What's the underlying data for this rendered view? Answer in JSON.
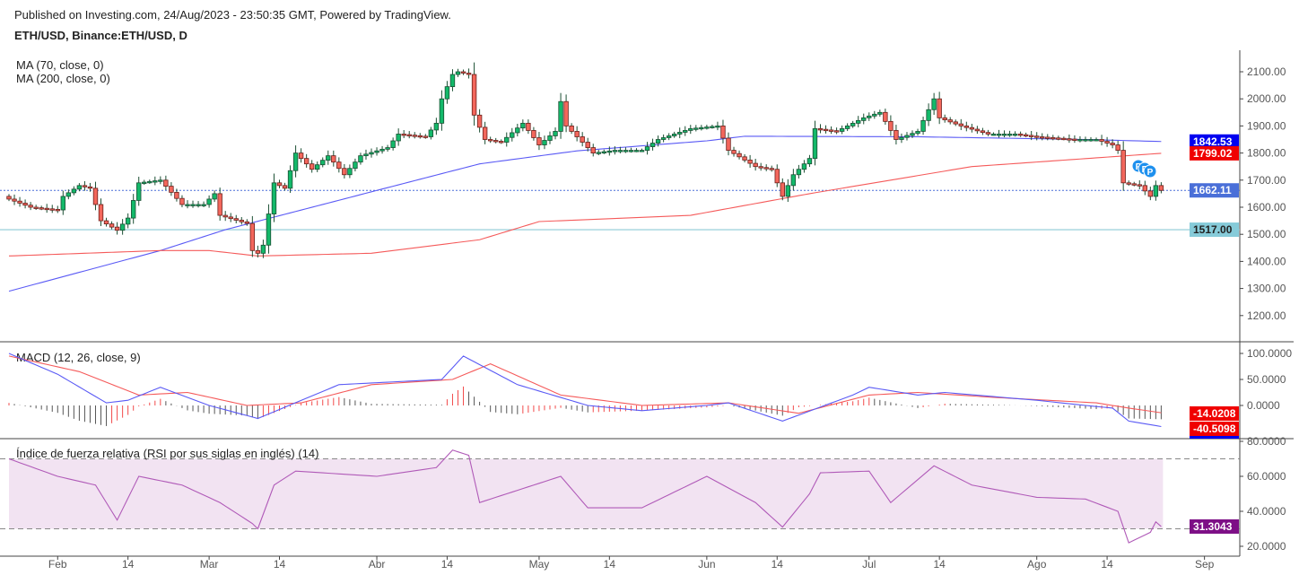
{
  "header": {
    "published": "Published on Investing.com, 24/Aug/2023 - 23:50:35 GMT, Powered by TradingView.",
    "symbol": "ETH/USD, Binance:ETH/USD, D"
  },
  "legends": {
    "ma70": "MA (70, close, 0)",
    "ma200": "MA (200, close, 0)",
    "macd": "MACD (12, 26, close, 9)",
    "rsi": "Índice de fuerza relativa (RSI por sus siglas en inglés) (14)"
  },
  "markers": [
    "P",
    "P",
    "P"
  ],
  "colors": {
    "up": "#13b96a",
    "down": "#f3675c",
    "wick": "#1b4f33",
    "ma70": "#5a5af5",
    "ma200": "#f55a5a",
    "macd": "#5a5af5",
    "signal": "#f55a5a",
    "rsi": "#b05ab8",
    "rsi_band": "#f2e3f2"
  },
  "chart_data": [
    {
      "type": "candlestick",
      "title": "ETH/USD, Binance:ETH/USD, D",
      "ylim": [
        1100,
        2150
      ],
      "y_ticks": [
        "2100.00",
        "2000.00",
        "1900.00",
        "1800.00",
        "1700.00",
        "1600.00",
        "1500.00",
        "1400.00",
        "1300.00",
        "1200.00"
      ],
      "x_ticks": [
        "Feb",
        "14",
        "Mar",
        "14",
        "Abr",
        "14",
        "May",
        "14",
        "Jun",
        "14",
        "Jul",
        "14",
        "Ago",
        "14",
        "Sep"
      ],
      "x_tick_dates": [
        "2023-02-01",
        "2023-02-14",
        "2023-03-01",
        "2023-03-14",
        "2023-04-01",
        "2023-04-14",
        "2023-05-01",
        "2023-05-14",
        "2023-06-01",
        "2023-06-14",
        "2023-07-01",
        "2023-07-14",
        "2023-08-01",
        "2023-08-14",
        "2023-09-01"
      ],
      "start_date": "2023-01-23",
      "close_anchors": [
        [
          "2023-01-23",
          1630
        ],
        [
          "2023-01-27",
          1600
        ],
        [
          "2023-02-01",
          1590
        ],
        [
          "2023-02-02",
          1640
        ],
        [
          "2023-02-05",
          1680
        ],
        [
          "2023-02-07",
          1670
        ],
        [
          "2023-02-09",
          1550
        ],
        [
          "2023-02-12",
          1515
        ],
        [
          "2023-02-14",
          1560
        ],
        [
          "2023-02-16",
          1690
        ],
        [
          "2023-02-18",
          1695
        ],
        [
          "2023-02-20",
          1700
        ],
        [
          "2023-02-24",
          1610
        ],
        [
          "2023-02-28",
          1610
        ],
        [
          "2023-03-02",
          1650
        ],
        [
          "2023-03-03",
          1570
        ],
        [
          "2023-03-08",
          1540
        ],
        [
          "2023-03-09",
          1440
        ],
        [
          "2023-03-10",
          1430
        ],
        [
          "2023-03-11",
          1460
        ],
        [
          "2023-03-13",
          1690
        ],
        [
          "2023-03-15",
          1670
        ],
        [
          "2023-03-17",
          1800
        ],
        [
          "2023-03-20",
          1740
        ],
        [
          "2023-03-23",
          1790
        ],
        [
          "2023-03-26",
          1720
        ],
        [
          "2023-03-29",
          1790
        ],
        [
          "2023-04-03",
          1820
        ],
        [
          "2023-04-05",
          1870
        ],
        [
          "2023-04-10",
          1860
        ],
        [
          "2023-04-12",
          1910
        ],
        [
          "2023-04-13",
          2000
        ],
        [
          "2023-04-15",
          2090
        ],
        [
          "2023-04-16",
          2100
        ],
        [
          "2023-04-18",
          2090
        ],
        [
          "2023-04-19",
          1940
        ],
        [
          "2023-04-21",
          1850
        ],
        [
          "2023-04-24",
          1840
        ],
        [
          "2023-04-28",
          1910
        ],
        [
          "2023-05-01",
          1830
        ],
        [
          "2023-05-04",
          1880
        ],
        [
          "2023-05-05",
          1990
        ],
        [
          "2023-05-06",
          1900
        ],
        [
          "2023-05-09",
          1840
        ],
        [
          "2023-05-11",
          1800
        ],
        [
          "2023-05-15",
          1810
        ],
        [
          "2023-05-20",
          1810
        ],
        [
          "2023-05-23",
          1850
        ],
        [
          "2023-05-29",
          1890
        ],
        [
          "2023-06-03",
          1900
        ],
        [
          "2023-06-05",
          1810
        ],
        [
          "2023-06-10",
          1750
        ],
        [
          "2023-06-13",
          1740
        ],
        [
          "2023-06-15",
          1640
        ],
        [
          "2023-06-17",
          1720
        ],
        [
          "2023-06-20",
          1780
        ],
        [
          "2023-06-21",
          1890
        ],
        [
          "2023-06-25",
          1880
        ],
        [
          "2023-06-30",
          1930
        ],
        [
          "2023-07-03",
          1950
        ],
        [
          "2023-07-06",
          1850
        ],
        [
          "2023-07-10",
          1880
        ],
        [
          "2023-07-13",
          2000
        ],
        [
          "2023-07-14",
          1930
        ],
        [
          "2023-07-18",
          1900
        ],
        [
          "2023-07-23",
          1870
        ],
        [
          "2023-07-28",
          1870
        ],
        [
          "2023-08-01",
          1860
        ],
        [
          "2023-08-08",
          1850
        ],
        [
          "2023-08-12",
          1850
        ],
        [
          "2023-08-15",
          1830
        ],
        [
          "2023-08-16",
          1810
        ],
        [
          "2023-08-17",
          1690
        ],
        [
          "2023-08-20",
          1680
        ],
        [
          "2023-08-22",
          1640
        ],
        [
          "2023-08-23",
          1680
        ],
        [
          "2023-08-24",
          1662.11
        ]
      ],
      "ma70_anchors": [
        [
          "2023-01-23",
          1290
        ],
        [
          "2023-02-20",
          1440
        ],
        [
          "2023-03-04",
          1517
        ],
        [
          "2023-04-01",
          1662
        ],
        [
          "2023-04-20",
          1760
        ],
        [
          "2023-05-08",
          1808
        ],
        [
          "2023-06-01",
          1845
        ],
        [
          "2023-06-08",
          1862
        ],
        [
          "2023-07-10",
          1860
        ],
        [
          "2023-08-10",
          1850
        ],
        [
          "2023-08-24",
          1842.53
        ]
      ],
      "ma200_anchors": [
        [
          "2023-01-23",
          1420
        ],
        [
          "2023-02-20",
          1440
        ],
        [
          "2023-03-01",
          1440
        ],
        [
          "2023-03-10",
          1420
        ],
        [
          "2023-03-31",
          1430
        ],
        [
          "2023-04-20",
          1480
        ],
        [
          "2023-05-01",
          1547
        ],
        [
          "2023-05-29",
          1570
        ],
        [
          "2023-06-20",
          1650
        ],
        [
          "2023-07-20",
          1750
        ],
        [
          "2023-08-24",
          1799.02
        ]
      ],
      "last_price": "1662.11",
      "ma70_last": "1842.53",
      "ma200_last": "1799.02",
      "hline": "1517.00",
      "hline_value": 1517
    },
    {
      "type": "line",
      "title": "MACD (12, 26, close, 9)",
      "ylim": [
        -60,
        110
      ],
      "y_ticks": [
        "100.0000",
        "50.0000",
        "0.0000"
      ],
      "macd_anchors": [
        [
          "2023-01-23",
          100
        ],
        [
          "2023-02-01",
          60
        ],
        [
          "2023-02-10",
          5
        ],
        [
          "2023-02-14",
          10
        ],
        [
          "2023-02-20",
          35
        ],
        [
          "2023-03-01",
          0
        ],
        [
          "2023-03-10",
          -25
        ],
        [
          "2023-03-25",
          40
        ],
        [
          "2023-04-13",
          50
        ],
        [
          "2023-04-17",
          95
        ],
        [
          "2023-04-27",
          40
        ],
        [
          "2023-05-10",
          0
        ],
        [
          "2023-05-20",
          -10
        ],
        [
          "2023-06-01",
          0
        ],
        [
          "2023-06-05",
          5
        ],
        [
          "2023-06-15",
          -30
        ],
        [
          "2023-06-28",
          20
        ],
        [
          "2023-07-01",
          35
        ],
        [
          "2023-07-10",
          20
        ],
        [
          "2023-07-15",
          25
        ],
        [
          "2023-08-01",
          10
        ],
        [
          "2023-08-10",
          0
        ],
        [
          "2023-08-15",
          -5
        ],
        [
          "2023-08-18",
          -30
        ],
        [
          "2023-08-24",
          -40.5
        ]
      ],
      "signal_anchors": [
        [
          "2023-01-23",
          95
        ],
        [
          "2023-02-05",
          65
        ],
        [
          "2023-02-16",
          20
        ],
        [
          "2023-02-25",
          25
        ],
        [
          "2023-03-08",
          0
        ],
        [
          "2023-03-18",
          5
        ],
        [
          "2023-03-31",
          40
        ],
        [
          "2023-04-15",
          50
        ],
        [
          "2023-04-22",
          80
        ],
        [
          "2023-05-05",
          20
        ],
        [
          "2023-05-20",
          0
        ],
        [
          "2023-06-05",
          5
        ],
        [
          "2023-06-18",
          -15
        ],
        [
          "2023-07-01",
          20
        ],
        [
          "2023-07-10",
          25
        ],
        [
          "2023-07-25",
          15
        ],
        [
          "2023-08-12",
          5
        ],
        [
          "2023-08-18",
          -5
        ],
        [
          "2023-08-24",
          -14
        ]
      ],
      "macd_last": "-40.5098",
      "signal_last": "-14.0208"
    },
    {
      "type": "line",
      "title": "RSI (14)",
      "ylim": [
        10,
        85
      ],
      "y_ticks": [
        "80.0000",
        "60.0000",
        "40.0000",
        "20.0000"
      ],
      "band": [
        30,
        70
      ],
      "rsi_anchors": [
        [
          "2023-01-23",
          70
        ],
        [
          "2023-02-01",
          60
        ],
        [
          "2023-02-08",
          55
        ],
        [
          "2023-02-12",
          35
        ],
        [
          "2023-02-16",
          60
        ],
        [
          "2023-02-24",
          55
        ],
        [
          "2023-03-03",
          45
        ],
        [
          "2023-03-09",
          33
        ],
        [
          "2023-03-10",
          30
        ],
        [
          "2023-03-13",
          55
        ],
        [
          "2023-03-17",
          63
        ],
        [
          "2023-04-01",
          60
        ],
        [
          "2023-04-12",
          65
        ],
        [
          "2023-04-15",
          75
        ],
        [
          "2023-04-18",
          72
        ],
        [
          "2023-04-20",
          45
        ],
        [
          "2023-05-05",
          60
        ],
        [
          "2023-05-10",
          42
        ],
        [
          "2023-05-20",
          42
        ],
        [
          "2023-06-01",
          60
        ],
        [
          "2023-06-10",
          45
        ],
        [
          "2023-06-15",
          31
        ],
        [
          "2023-06-20",
          50
        ],
        [
          "2023-06-22",
          62
        ],
        [
          "2023-07-01",
          63
        ],
        [
          "2023-07-05",
          45
        ],
        [
          "2023-07-13",
          66
        ],
        [
          "2023-07-20",
          55
        ],
        [
          "2023-08-01",
          48
        ],
        [
          "2023-08-10",
          47
        ],
        [
          "2023-08-16",
          40
        ],
        [
          "2023-08-18",
          22
        ],
        [
          "2023-08-20",
          25
        ],
        [
          "2023-08-22",
          28
        ],
        [
          "2023-08-23",
          34
        ],
        [
          "2023-08-24",
          31.3043
        ]
      ],
      "rsi_last": "31.3043"
    }
  ]
}
